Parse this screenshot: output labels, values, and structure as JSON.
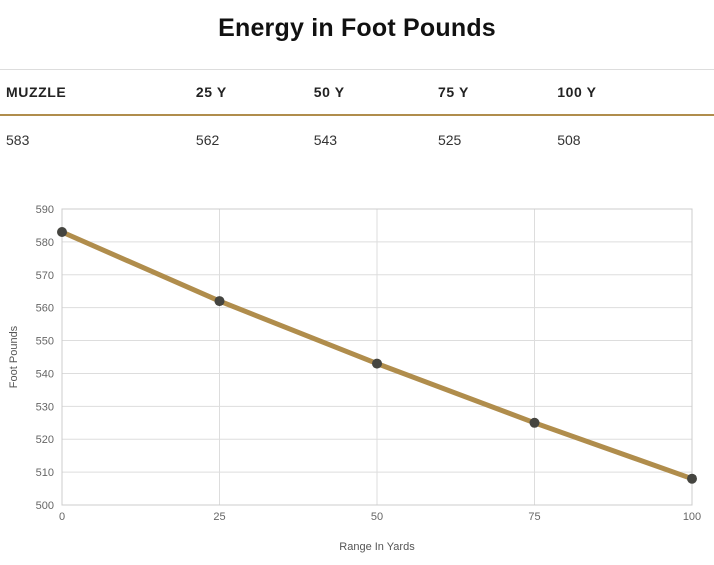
{
  "title": "Energy in Foot Pounds",
  "table": {
    "headers": [
      "MUZZLE",
      "25 Y",
      "50 Y",
      "75 Y",
      "100 Y"
    ],
    "values": [
      "583",
      "562",
      "543",
      "525",
      "508"
    ]
  },
  "chart_data": {
    "type": "line",
    "x": [
      0,
      25,
      50,
      75,
      100
    ],
    "values": [
      583,
      562,
      543,
      525,
      508
    ],
    "title": "Energy in Foot Pounds",
    "xlabel": "Range In Yards",
    "ylabel": "Foot Pounds",
    "xlim": [
      0,
      100
    ],
    "ylim": [
      500,
      590
    ],
    "x_ticks": [
      0,
      25,
      50,
      75,
      100
    ],
    "y_ticks": [
      500,
      510,
      520,
      530,
      540,
      550,
      560,
      570,
      580,
      590
    ],
    "grid": true,
    "legend": false,
    "line_color": "#b08d4c",
    "point_color": "#454540",
    "grid_color": "#dddddd",
    "border_color": "#cccccc"
  },
  "colors": {
    "accent": "#b08d4c"
  }
}
